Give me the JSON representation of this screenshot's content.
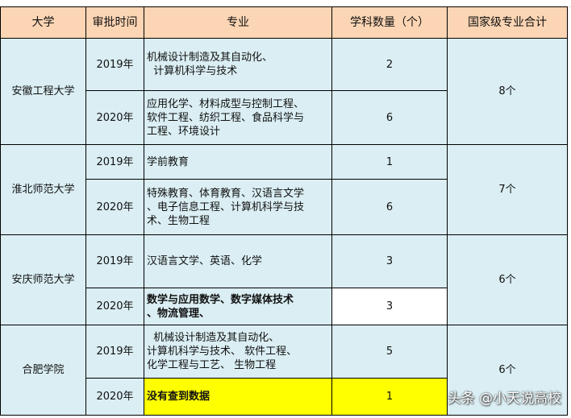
{
  "headers": [
    "大学",
    "审批时间",
    "专业",
    "学科数量（个）",
    "国家级专业合计"
  ],
  "universities": [
    {
      "name": "安徽工程大学",
      "total": "8个",
      "rows": [
        {
          "year": "2019年",
          "majors": [
            "机械设计制造及其自动化、",
            "  计算机科学与技术"
          ],
          "count": "2"
        },
        {
          "year": "2020年",
          "majors": [
            "应用化学、材料成型与控制工程、",
            "软件工程、纺织工程、食品科学与",
            "工程、环境设计"
          ],
          "count": "6"
        }
      ]
    },
    {
      "name": "淮北师范大学",
      "total": "7个",
      "rows": [
        {
          "year": "2019年",
          "majors": [
            "学前教育"
          ],
          "count": "1"
        },
        {
          "year": "2020年",
          "majors": [
            "特殊教育、体育教育、汉语言文学",
            "、电子信息工程、计算机科学与技",
            "术、生物工程"
          ],
          "count": "6"
        }
      ]
    },
    {
      "name": "安庆师范大学",
      "total": "6个",
      "rows": [
        {
          "year": "2019年",
          "majors": [
            "汉语言文学、英语、化学"
          ],
          "count": "3"
        },
        {
          "year": "2020年",
          "majors": [
            "数学与应用数学、数字媒体技术",
            "、物流管理、"
          ],
          "count": "3"
        }
      ]
    },
    {
      "name": "合肥学院",
      "total": "6个",
      "rows": [
        {
          "year": "2019年",
          "majors": [
            "  机械设计制造及其自动化、",
            "计算机科学与技术、 软件工程、",
            "化学工程与工艺、 生物工程"
          ],
          "count": "5"
        },
        {
          "year": "2020年",
          "majors": [
            "没有查到数据"
          ],
          "count": "1"
        }
      ]
    }
  ],
  "watermark": "头条 @小天说高校",
  "colors": {
    "header": "#fcd5b4",
    "cell": "#daeef3",
    "highlight": "#ffff00"
  }
}
